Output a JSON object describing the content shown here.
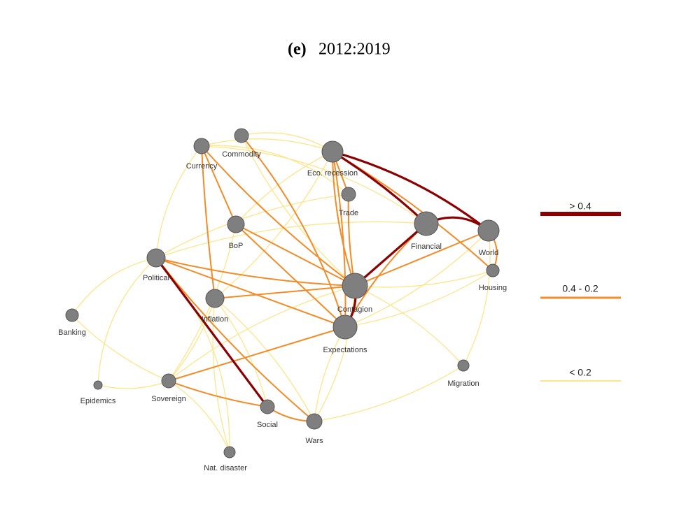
{
  "title": {
    "label": "(e)",
    "period": "2012:2019"
  },
  "nodes": [
    {
      "label": "Currency"
    },
    {
      "label": "Commodity"
    },
    {
      "label": "Eco. recession"
    },
    {
      "label": "Trade"
    },
    {
      "label": "BoP"
    },
    {
      "label": "Financial"
    },
    {
      "label": "World"
    },
    {
      "label": "Housing"
    },
    {
      "label": "Political"
    },
    {
      "label": "Contagion"
    },
    {
      "label": "Inflation"
    },
    {
      "label": "Banking"
    },
    {
      "label": "Expectations"
    },
    {
      "label": "Migration"
    },
    {
      "label": "Epidemics"
    },
    {
      "label": "Sovereign"
    },
    {
      "label": "Social"
    },
    {
      "label": "Wars"
    },
    {
      "label": "Nat. disaster"
    }
  ],
  "legend": [
    {
      "label": "> 0.4"
    },
    {
      "label": "0.4 - 0.2"
    },
    {
      "label": "< 0.2"
    }
  ]
}
